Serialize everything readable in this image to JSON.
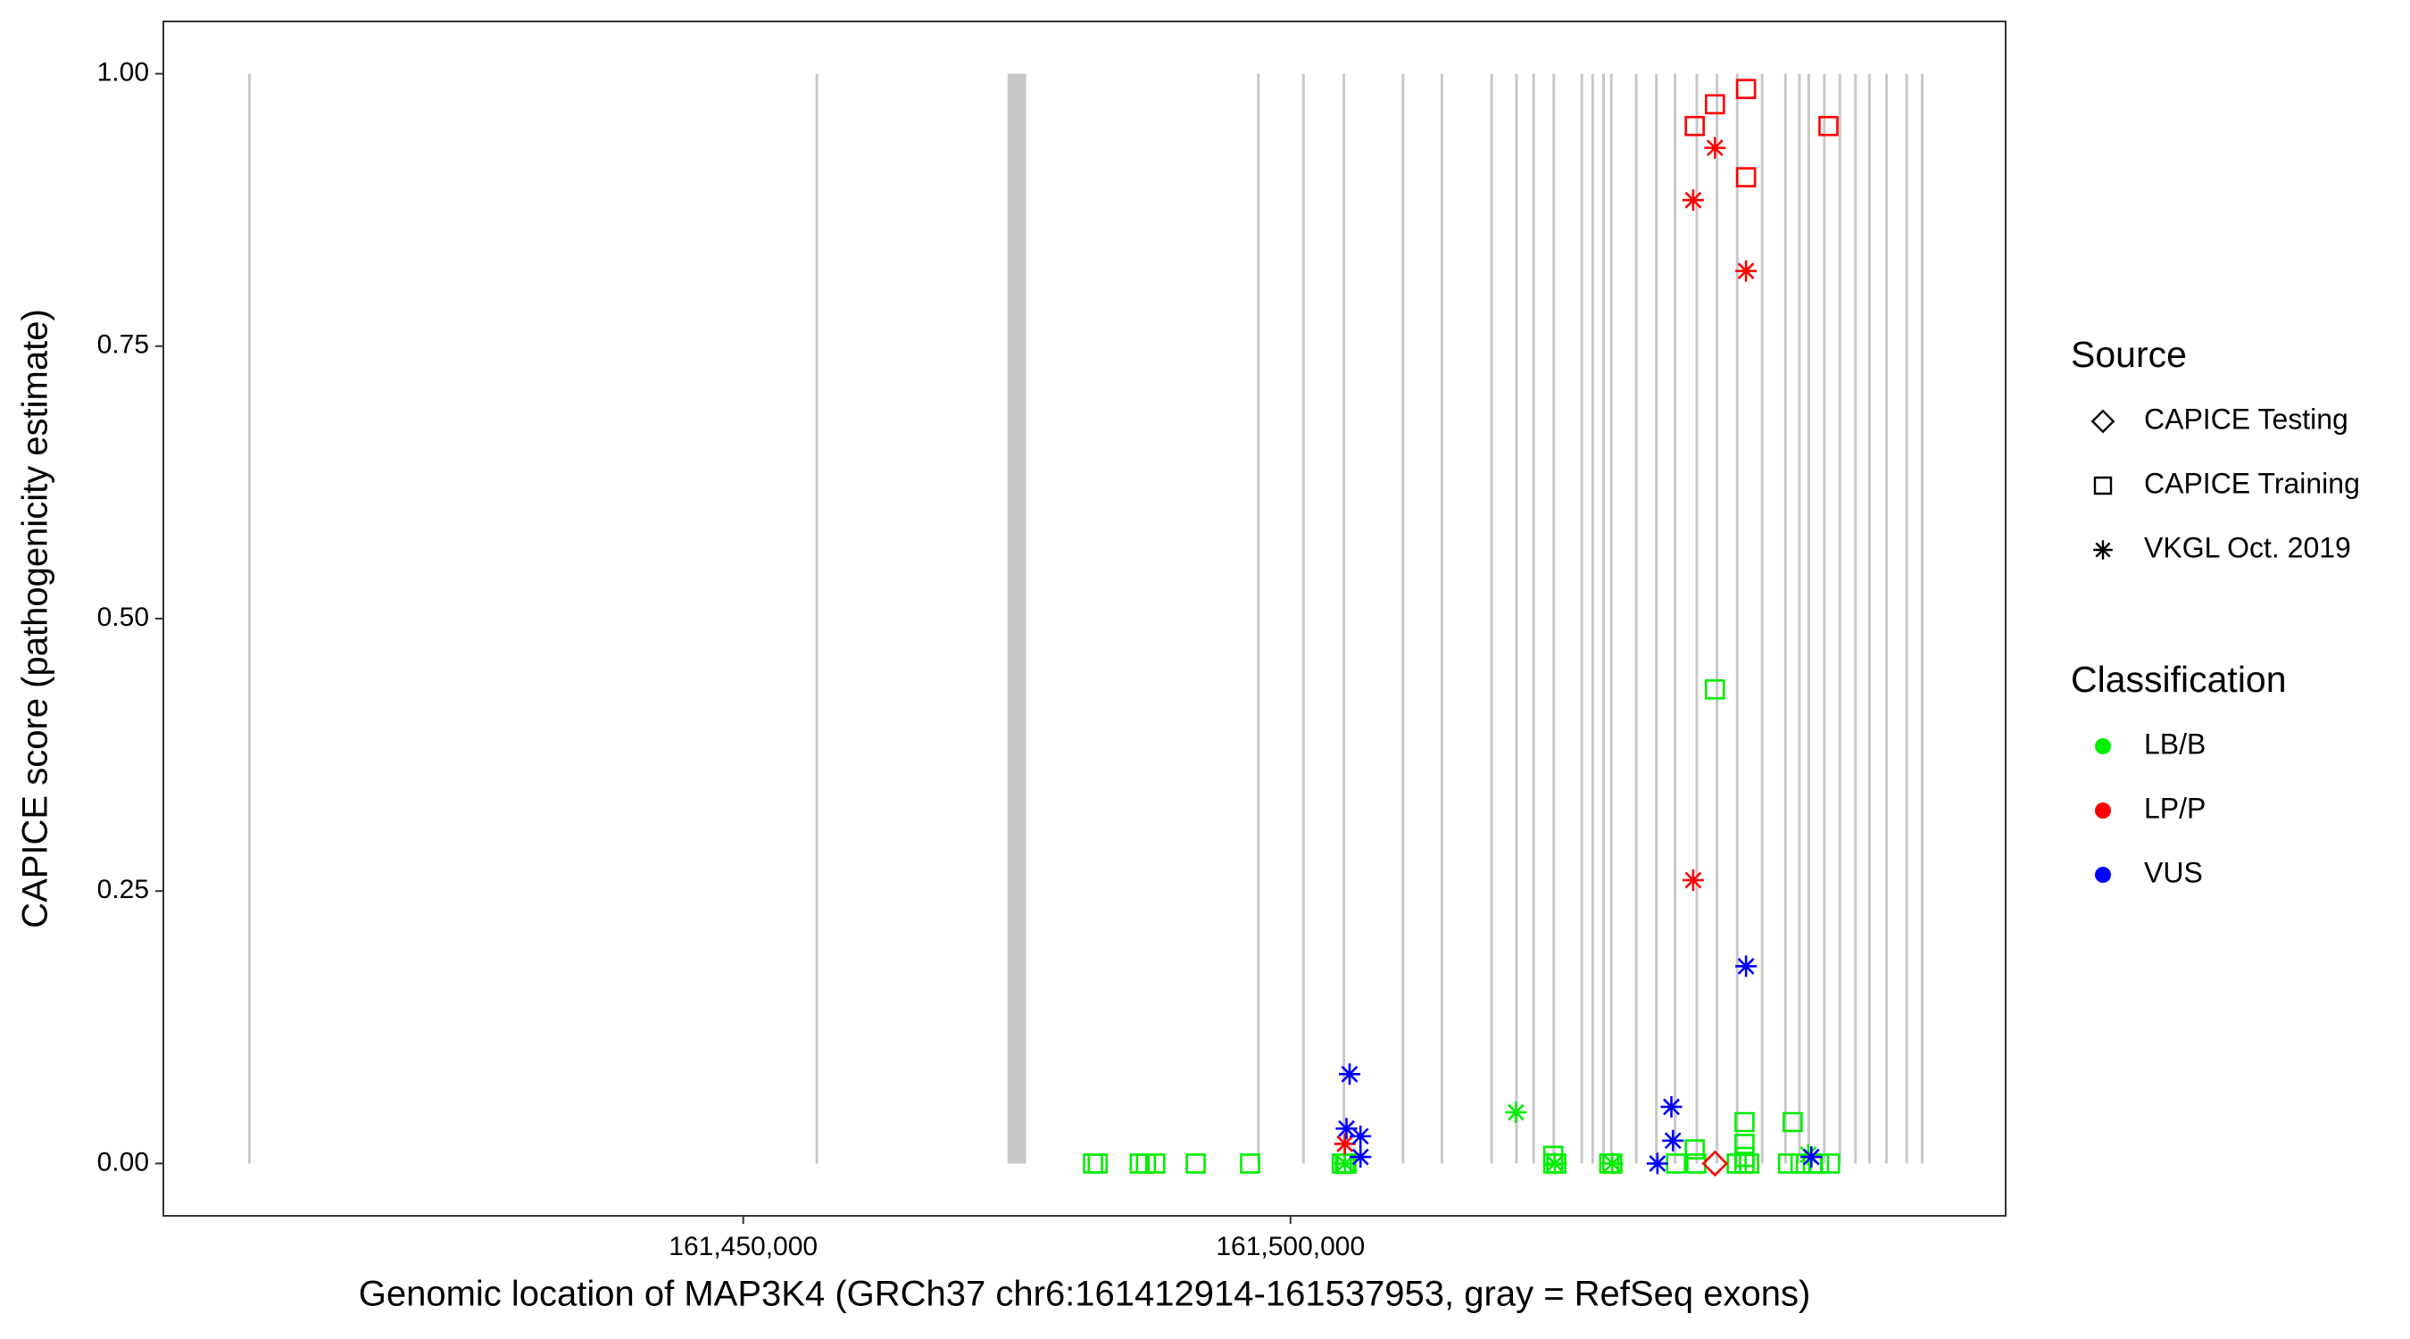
{
  "chart_data": {
    "type": "scatter",
    "xlabel": "Genomic location of MAP3K4 (GRCh37 chr6:161412914-161537953, gray = RefSeq exons)",
    "ylabel": "CAPICE score (pathogenicity estimate)",
    "xlim": [
      161397015,
      161565343
    ],
    "ylim": [
      -0.048,
      1.048
    ],
    "xticks": [
      {
        "value": 161450000,
        "label": "161,450,000"
      },
      {
        "value": 161500000,
        "label": "161,500,000"
      }
    ],
    "yticks": [
      {
        "value": 0,
        "label": "0.00"
      },
      {
        "value": 0.25,
        "label": "0.25"
      },
      {
        "value": 0.5,
        "label": "0.50"
      },
      {
        "value": 0.75,
        "label": "0.75"
      },
      {
        "value": 1,
        "label": "1.00"
      }
    ],
    "grid": false,
    "exon_color": "#c8c8c8",
    "exon_y": [
      0,
      1
    ],
    "exons": [
      {
        "start": 161404828,
        "end": 161404928
      },
      {
        "start": 161456676,
        "end": 161456776
      },
      {
        "start": 161474149,
        "end": 161475853
      },
      {
        "start": 161497019,
        "end": 161497119
      },
      {
        "start": 161501138,
        "end": 161501238
      },
      {
        "start": 161504831,
        "end": 161504931
      },
      {
        "start": 161510229,
        "end": 161510329
      },
      {
        "start": 161513780,
        "end": 161513880
      },
      {
        "start": 161518326,
        "end": 161518426
      },
      {
        "start": 161520599,
        "end": 161520699
      },
      {
        "start": 161522161,
        "end": 161522261
      },
      {
        "start": 161524008,
        "end": 161524108
      },
      {
        "start": 161526565,
        "end": 161526665
      },
      {
        "start": 161527559,
        "end": 161527659
      },
      {
        "start": 161528554,
        "end": 161528654
      },
      {
        "start": 161529264,
        "end": 161529364
      },
      {
        "start": 161531537,
        "end": 161531637
      },
      {
        "start": 161533383,
        "end": 161533483
      },
      {
        "start": 161535088,
        "end": 161535188
      },
      {
        "start": 161537077,
        "end": 161537177
      },
      {
        "start": 161538923,
        "end": 161539023
      },
      {
        "start": 161540770,
        "end": 161540870
      },
      {
        "start": 161543043,
        "end": 161543143
      },
      {
        "start": 161545174,
        "end": 161545274
      },
      {
        "start": 161546452,
        "end": 161546552
      },
      {
        "start": 161547304,
        "end": 161547404
      },
      {
        "start": 161548725,
        "end": 161548825
      },
      {
        "start": 161550145,
        "end": 161550245
      },
      {
        "start": 161551566,
        "end": 161551666
      },
      {
        "start": 161552844,
        "end": 161552944
      },
      {
        "start": 161554407,
        "end": 161554507
      },
      {
        "start": 161556253,
        "end": 161556353
      },
      {
        "start": 161557674,
        "end": 161557774
      }
    ],
    "shape_legend": {
      "title": "Source",
      "items": [
        {
          "name": "CAPICE Testing",
          "shape": "diamond"
        },
        {
          "name": "CAPICE Training",
          "shape": "square"
        },
        {
          "name": "VKGL Oct. 2019",
          "shape": "asterisk"
        }
      ]
    },
    "color_legend": {
      "title": "Classification",
      "items": [
        {
          "name": "LB/B",
          "color": "#00ee00"
        },
        {
          "name": "LP/P",
          "color": "#ff0000"
        },
        {
          "name": "VUS",
          "color": "#0000ff"
        }
      ]
    },
    "series": [
      {
        "source": "CAPICE Training",
        "classification": "LB/B",
        "x": [
          161481961,
          161482387,
          161486223,
          161486791,
          161487643,
          161491337,
          161496308,
          161504689,
          161504973,
          161505115,
          161524008,
          161524292,
          161529122,
          161529406,
          161535230,
          161537077,
          161540770,
          161541480,
          161541906,
          161545458,
          161546594,
          161547730,
          161548299,
          161549293,
          161538781,
          161541480,
          161545884,
          161524008,
          161536935,
          161541480,
          161541480
        ],
        "values": [
          0,
          0,
          0,
          0,
          0,
          0,
          0,
          0,
          0,
          0,
          0,
          0,
          0,
          0,
          0,
          0,
          0,
          0,
          0,
          0,
          0,
          0,
          0,
          0,
          0.435,
          0.038,
          0.038,
          0.007,
          0.013,
          0.018,
          0.006
        ]
      },
      {
        "source": "VKGL Oct. 2019",
        "classification": "LB/B",
        "x": [
          161520599,
          161504973,
          161524150,
          161529406,
          161547304
        ],
        "values": [
          0.047,
          0,
          0,
          0,
          0.008
        ]
      },
      {
        "source": "CAPICE Training",
        "classification": "LP/P",
        "x": [
          161536935,
          161538781,
          161541622,
          161541622,
          161549151
        ],
        "values": [
          0.952,
          0.972,
          0.986,
          0.905,
          0.952
        ]
      },
      {
        "source": "VKGL Oct. 2019",
        "classification": "LP/P",
        "x": [
          161538781,
          161536793,
          161541622,
          161536793,
          161504973
        ],
        "values": [
          0.932,
          0.884,
          0.819,
          0.26,
          0.018
        ]
      },
      {
        "source": "CAPICE Testing",
        "classification": "LP/P",
        "x": [
          161538781
        ],
        "values": [
          0
        ]
      },
      {
        "source": "VKGL Oct. 2019",
        "classification": "VUS",
        "x": [
          161505400,
          161505115,
          161506394,
          161506394,
          161534804,
          161534946,
          161533525,
          161541622,
          161547588
        ],
        "values": [
          0.082,
          0.032,
          0.025,
          0.006,
          0.052,
          0.021,
          0,
          0.181,
          0.006
        ]
      }
    ]
  }
}
